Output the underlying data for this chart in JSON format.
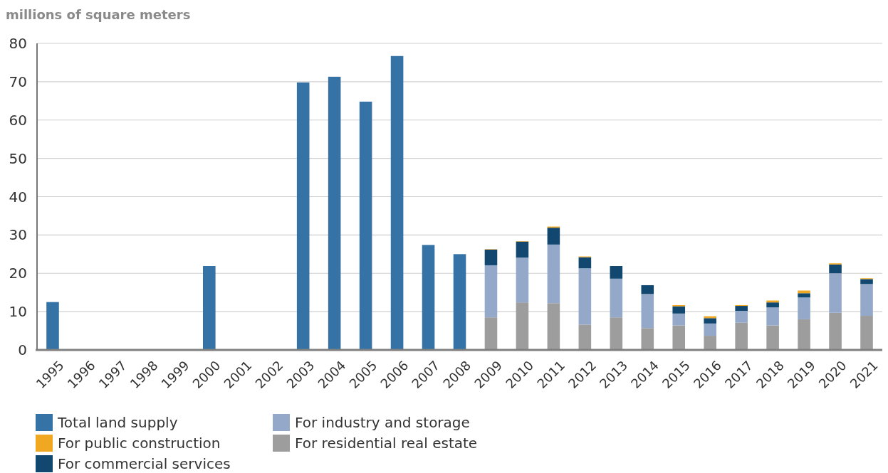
{
  "chart_data": {
    "type": "bar",
    "stacked": true,
    "ylabel": "millions of square meters",
    "categories": [
      "1995",
      "1996",
      "1997",
      "1998",
      "1999",
      "2000",
      "2001",
      "2002",
      "2003",
      "2004",
      "2005",
      "2006",
      "2007",
      "2008",
      "2009",
      "2010",
      "2011",
      "2012",
      "2013",
      "2014",
      "2015",
      "2016",
      "2017",
      "2018",
      "2019",
      "2020",
      "2021"
    ],
    "series": [
      {
        "name": "For residential real estate",
        "color": "#9d9d9d",
        "values": [
          null,
          null,
          null,
          null,
          null,
          null,
          null,
          null,
          null,
          null,
          null,
          null,
          null,
          null,
          8.5,
          12.4,
          12.2,
          6.6,
          8.5,
          5.7,
          6.4,
          3.7,
          7.1,
          6.4,
          8.0,
          9.7,
          8.9
        ]
      },
      {
        "name": "For industry and storage",
        "color": "#94a9c9",
        "values": [
          null,
          null,
          null,
          null,
          null,
          null,
          null,
          null,
          null,
          null,
          null,
          null,
          null,
          null,
          13.6,
          11.7,
          15.3,
          14.7,
          10.1,
          8.9,
          3.1,
          3.2,
          3.1,
          4.7,
          5.7,
          10.3,
          8.3
        ]
      },
      {
        "name": "For commercial services",
        "color": "#124870",
        "values": [
          null,
          null,
          null,
          null,
          null,
          null,
          null,
          null,
          null,
          null,
          null,
          null,
          null,
          null,
          4.1,
          4.2,
          4.4,
          2.9,
          3.3,
          2.3,
          1.9,
          1.4,
          1.3,
          1.3,
          1.1,
          2.3,
          1.3
        ]
      },
      {
        "name": "For public construction",
        "color": "#f0a823",
        "values": [
          null,
          null,
          null,
          null,
          null,
          null,
          null,
          null,
          null,
          null,
          null,
          null,
          null,
          null,
          0.1,
          0.1,
          0.3,
          0.2,
          null,
          null,
          0.3,
          0.5,
          0.2,
          0.5,
          0.7,
          0.3,
          0.2
        ]
      },
      {
        "name": "Total land supply",
        "color": "#3572a5",
        "values": [
          12.5,
          null,
          null,
          null,
          null,
          21.9,
          null,
          null,
          69.8,
          71.3,
          64.8,
          76.7,
          27.4,
          25.0,
          null,
          null,
          null,
          null,
          null,
          null,
          null,
          null,
          null,
          null,
          null,
          null,
          null
        ]
      }
    ],
    "ylim": [
      0,
      80
    ],
    "yticks": [
      0,
      10,
      20,
      30,
      40,
      50,
      60,
      70,
      80
    ],
    "grid": "y",
    "legend": "bottom"
  }
}
